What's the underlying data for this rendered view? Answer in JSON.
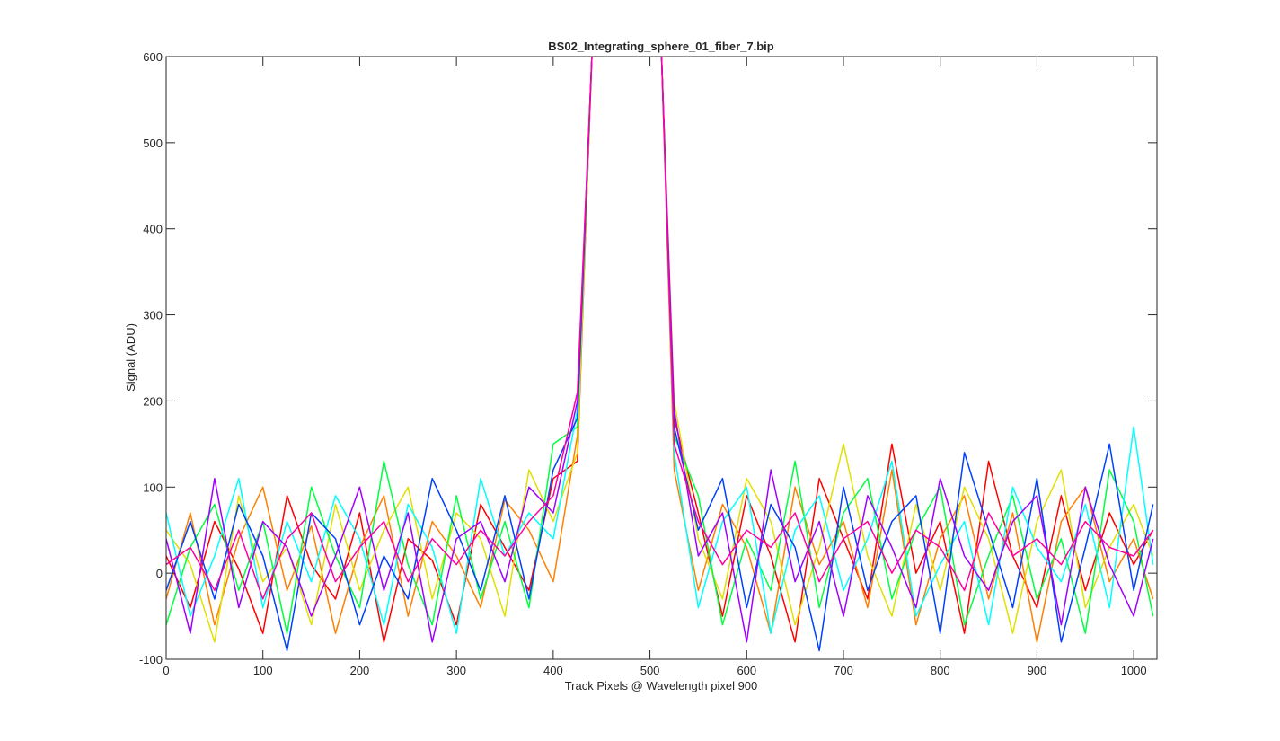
{
  "chart_data": {
    "type": "line",
    "title": "BS02_Integrating_sphere_01_fiber_7.bip",
    "x_label": "Track Pixels @ Wavelength pixel 900",
    "y_label": "Signal (ADU)",
    "x": [
      0,
      25,
      50,
      75,
      100,
      125,
      150,
      175,
      200,
      225,
      250,
      275,
      300,
      325,
      350,
      375,
      400,
      425,
      440,
      475,
      512,
      525,
      550,
      575,
      600,
      625,
      650,
      675,
      700,
      725,
      750,
      775,
      800,
      825,
      850,
      875,
      900,
      925,
      950,
      975,
      1000,
      1020
    ],
    "series": [
      {
        "color": "#ff0000",
        "values": [
          20,
          -40,
          60,
          5,
          -70,
          90,
          10,
          -30,
          70,
          -80,
          40,
          15,
          -60,
          80,
          30,
          -20,
          110,
          130,
          600,
          null,
          600,
          180,
          70,
          -50,
          90,
          20,
          -80,
          110,
          40,
          -30,
          150,
          0,
          60,
          -70,
          130,
          20,
          -40,
          90,
          -20,
          70,
          10,
          50
        ]
      },
      {
        "color": "#ff8000",
        "values": [
          -30,
          70,
          -60,
          40,
          100,
          -20,
          55,
          -70,
          30,
          90,
          -50,
          60,
          20,
          -40,
          85,
          50,
          -10,
          160,
          600,
          null,
          600,
          120,
          -20,
          80,
          30,
          -70,
          100,
          10,
          60,
          -40,
          120,
          -60,
          40,
          90,
          -30,
          70,
          -80,
          60,
          100,
          -10,
          40,
          -30
        ]
      },
      {
        "color": "#e0e000",
        "values": [
          50,
          10,
          -80,
          90,
          -10,
          30,
          -60,
          80,
          -20,
          50,
          100,
          -30,
          70,
          40,
          -50,
          120,
          60,
          140,
          600,
          null,
          600,
          200,
          40,
          -30,
          110,
          60,
          -60,
          30,
          150,
          20,
          -50,
          80,
          -20,
          100,
          40,
          -70,
          60,
          120,
          -40,
          30,
          80,
          20
        ]
      },
      {
        "color": "#00ff40",
        "values": [
          -60,
          30,
          80,
          -20,
          60,
          -70,
          100,
          20,
          -40,
          130,
          10,
          -60,
          90,
          -30,
          60,
          -40,
          150,
          170,
          600,
          null,
          600,
          160,
          90,
          -60,
          40,
          -20,
          130,
          -40,
          70,
          110,
          -30,
          50,
          100,
          -60,
          20,
          90,
          -30,
          40,
          -70,
          120,
          60,
          -50
        ]
      },
      {
        "color": "#00ffff",
        "values": [
          70,
          -50,
          20,
          110,
          -40,
          60,
          -10,
          90,
          40,
          -60,
          80,
          30,
          -70,
          110,
          20,
          70,
          40,
          190,
          600,
          null,
          600,
          140,
          -40,
          60,
          100,
          -70,
          50,
          90,
          -20,
          40,
          130,
          -50,
          10,
          60,
          -60,
          100,
          30,
          -10,
          80,
          -40,
          170,
          10
        ]
      },
      {
        "color": "#0040ff",
        "values": [
          -20,
          60,
          -30,
          80,
          20,
          -90,
          70,
          40,
          -60,
          20,
          -30,
          110,
          50,
          -20,
          90,
          -30,
          120,
          180,
          600,
          null,
          600,
          170,
          50,
          110,
          -40,
          80,
          30,
          -90,
          100,
          -20,
          60,
          90,
          -70,
          140,
          50,
          -40,
          110,
          -80,
          30,
          150,
          -20,
          80
        ]
      },
      {
        "color": "#a000ff",
        "values": [
          40,
          -70,
          110,
          -40,
          60,
          30,
          -50,
          20,
          100,
          -20,
          70,
          -80,
          40,
          60,
          -10,
          100,
          70,
          200,
          600,
          null,
          600,
          190,
          20,
          70,
          -80,
          120,
          -10,
          60,
          -50,
          90,
          30,
          -40,
          110,
          20,
          -20,
          60,
          90,
          -60,
          100,
          10,
          -50,
          40
        ]
      },
      {
        "color": "#ff00a0",
        "values": [
          10,
          30,
          -20,
          50,
          -30,
          40,
          70,
          -10,
          30,
          60,
          -10,
          40,
          10,
          50,
          20,
          60,
          90,
          210,
          600,
          null,
          600,
          150,
          60,
          10,
          50,
          30,
          70,
          -10,
          40,
          60,
          0,
          50,
          30,
          -20,
          70,
          20,
          40,
          10,
          60,
          30,
          20,
          50
        ]
      }
    ],
    "xlim": [
      0,
      1024
    ],
    "ylim": [
      -100,
      600
    ],
    "xticks": [
      0,
      100,
      200,
      300,
      400,
      500,
      600,
      700,
      800,
      900,
      1000
    ],
    "yticks": [
      -100,
      0,
      100,
      200,
      300,
      400,
      500,
      600
    ]
  }
}
